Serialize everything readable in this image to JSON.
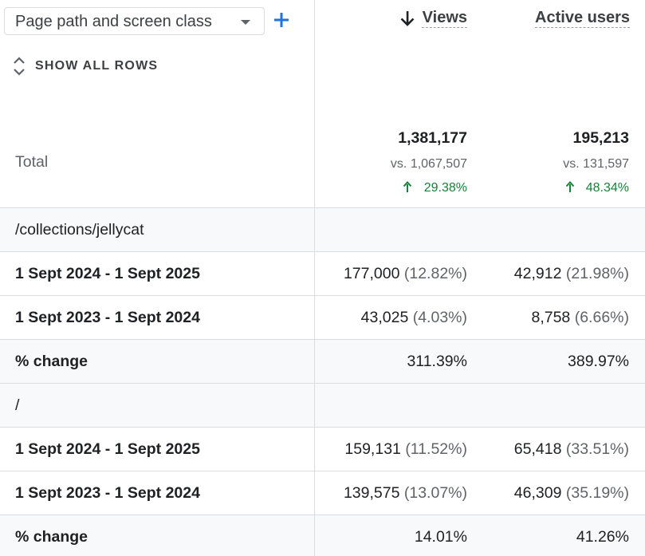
{
  "toolbar": {
    "dimension_label": "Page path and screen class",
    "show_all_rows_label": "SHOW ALL ROWS"
  },
  "columns": {
    "views": "Views",
    "active_users": "Active users"
  },
  "total": {
    "label": "Total",
    "views": "1,381,177",
    "views_vs": "vs. 1,067,507",
    "views_change": "29.38%",
    "active_users": "195,213",
    "active_users_vs": "vs. 131,597",
    "active_users_change": "48.34%"
  },
  "groups": [
    {
      "label": "/collections/jellycat",
      "rows": [
        {
          "label": "1 Sept 2024 - 1 Sept 2025",
          "views": "177,000",
          "views_pct": "(12.82%)",
          "users": "42,912",
          "users_pct": "(21.98%)"
        },
        {
          "label": "1 Sept 2023 - 1 Sept 2024",
          "views": "43,025",
          "views_pct": "(4.03%)",
          "users": "8,758",
          "users_pct": "(6.66%)"
        },
        {
          "label": "% change",
          "views": "311.39%",
          "views_pct": "",
          "users": "389.97%",
          "users_pct": ""
        }
      ]
    },
    {
      "label": "/",
      "rows": [
        {
          "label": "1 Sept 2024 - 1 Sept 2025",
          "views": "159,131",
          "views_pct": "(11.52%)",
          "users": "65,418",
          "users_pct": "(33.51%)"
        },
        {
          "label": "1 Sept 2023 - 1 Sept 2024",
          "views": "139,575",
          "views_pct": "(13.07%)",
          "users": "46,309",
          "users_pct": "(35.19%)"
        },
        {
          "label": "% change",
          "views": "14.01%",
          "views_pct": "",
          "users": "41.26%",
          "users_pct": ""
        }
      ]
    }
  ],
  "colors": {
    "accent": "#1a73e8",
    "positive": "#188038",
    "row_shade": "#f8f9fa",
    "border": "#dadce0"
  },
  "icons": {
    "add": "plus-icon",
    "show_all": "unfold-icon",
    "sort": "arrow-down-icon",
    "dropdown": "caret-down-icon",
    "change_up": "arrow-up-icon"
  }
}
